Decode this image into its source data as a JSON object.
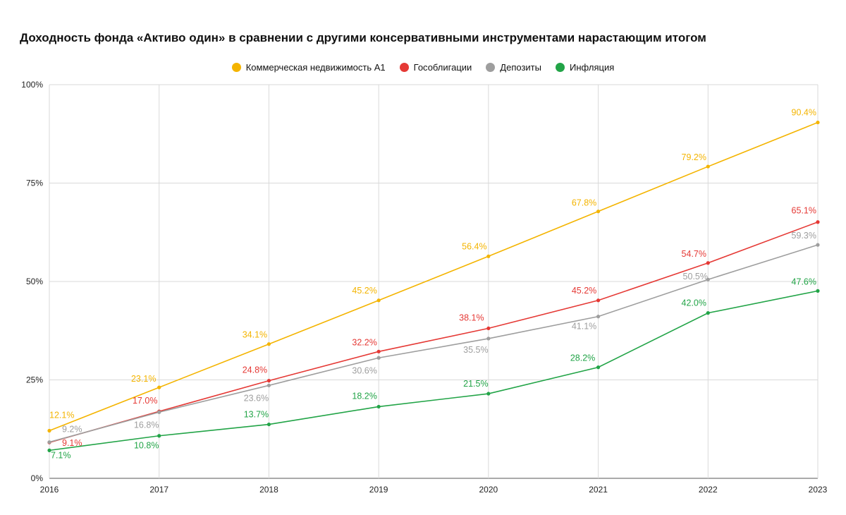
{
  "chart_data": {
    "type": "line",
    "title": "Доходность фонда «Активо один» в сравнении с другими консервативными инструментами нарастающим итогом",
    "xlabel": "",
    "ylabel": "",
    "x": [
      "2016",
      "2017",
      "2018",
      "2019",
      "2020",
      "2021",
      "2022",
      "2023"
    ],
    "ylim": [
      0,
      100
    ],
    "yticks": [
      0,
      25,
      50,
      75,
      100
    ],
    "ytick_labels": [
      "0%",
      "25%",
      "50%",
      "75%",
      "100%"
    ],
    "grid": true,
    "legend_position": "top-center",
    "series": [
      {
        "name": "Коммерческая недвижимость А1",
        "color": "#F4B400",
        "values": [
          12.1,
          23.1,
          34.1,
          45.2,
          56.4,
          67.8,
          79.2,
          90.4
        ],
        "labels": [
          "12.1%",
          "23.1%",
          "34.1%",
          "45.2%",
          "56.4%",
          "67.8%",
          "79.2%",
          "90.4%"
        ]
      },
      {
        "name": "Гособлигации",
        "color": "#E53935",
        "values": [
          9.1,
          17.0,
          24.8,
          32.2,
          38.1,
          45.2,
          54.7,
          65.1
        ],
        "labels": [
          "9.1%",
          "17.0%",
          "24.8%",
          "32.2%",
          "38.1%",
          "45.2%",
          "54.7%",
          "65.1%"
        ]
      },
      {
        "name": "Депозиты",
        "color": "#9E9E9E",
        "values": [
          9.2,
          16.8,
          23.6,
          30.6,
          35.5,
          41.1,
          50.5,
          59.3
        ],
        "labels": [
          "9.2%",
          "16.8%",
          "23.6%",
          "30.6%",
          "35.5%",
          "41.1%",
          "50.5%",
          "59.3%"
        ]
      },
      {
        "name": "Инфляция",
        "color": "#22A447",
        "values": [
          7.1,
          10.8,
          13.7,
          18.2,
          21.5,
          28.2,
          42.0,
          47.6
        ],
        "labels": [
          "7.1%",
          "10.8%",
          "13.7%",
          "18.2%",
          "21.5%",
          "28.2%",
          "42.0%",
          "47.6%"
        ]
      }
    ]
  }
}
